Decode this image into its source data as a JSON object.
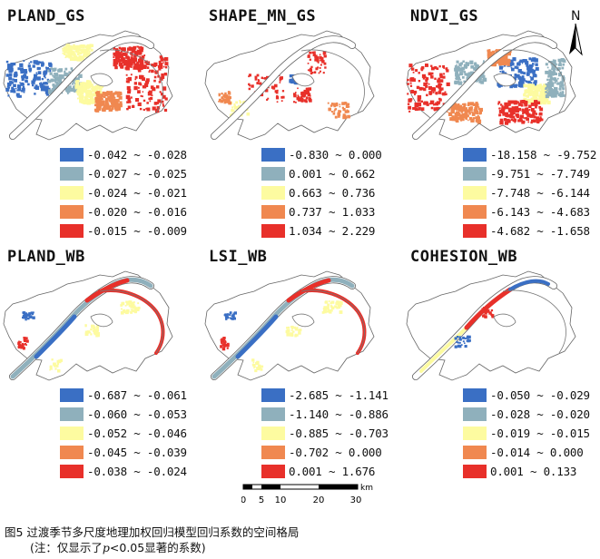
{
  "colors": [
    "#3a6fc4",
    "#8fb0bc",
    "#fdfba0",
    "#f08850",
    "#e8302a"
  ],
  "panels": [
    {
      "title": "PLAND_GS",
      "ranges": [
        "-0.042 ~ -0.028",
        "-0.027 ~ -0.025",
        "-0.024 ~ -0.021",
        "-0.020 ~ -0.016",
        "-0.015 ~ -0.009"
      ]
    },
    {
      "title": "SHAPE_MN_GS",
      "ranges": [
        "-0.830 ~ 0.000",
        "0.001 ~ 0.662",
        "0.663 ~ 0.736",
        "0.737 ~ 1.033",
        "1.034 ~ 2.229"
      ]
    },
    {
      "title": "NDVI_GS",
      "ranges": [
        "-18.158 ~ -9.752",
        "-9.751 ~ -7.749",
        "-7.748 ~ -6.144",
        "-6.143 ~ -4.683",
        "-4.682 ~ -1.658"
      ]
    },
    {
      "title": "PLAND_WB",
      "ranges": [
        "-0.687 ~ -0.061",
        "-0.060 ~ -0.053",
        "-0.052 ~ -0.046",
        "-0.045 ~ -0.039",
        "-0.038 ~ -0.024"
      ]
    },
    {
      "title": "LSI_WB",
      "ranges": [
        "-2.685 ~ -1.141",
        "-1.140 ~ -0.886",
        "-0.885 ~ -0.703",
        "-0.702 ~ 0.000",
        "0.001 ~ 1.676"
      ]
    },
    {
      "title": "COHESION_WB",
      "ranges": [
        "-0.050 ~ -0.029",
        "-0.028 ~ -0.020",
        "-0.019 ~ -0.015",
        "-0.014 ~ 0.000",
        "0.001 ~ 0.133"
      ]
    }
  ],
  "north_arrow": {
    "label": "N"
  },
  "scale_bar": {
    "ticks": [
      "0",
      "5",
      "10",
      "20",
      "30"
    ],
    "unit": "km"
  },
  "caption": {
    "line1": "图5  过渡季节多尺度地理加权回归模型回归系数的空间格局",
    "note_prefix": "(注：仅显示了",
    "note_p": "p",
    "note_suffix": "<0.05显著的系数)"
  }
}
